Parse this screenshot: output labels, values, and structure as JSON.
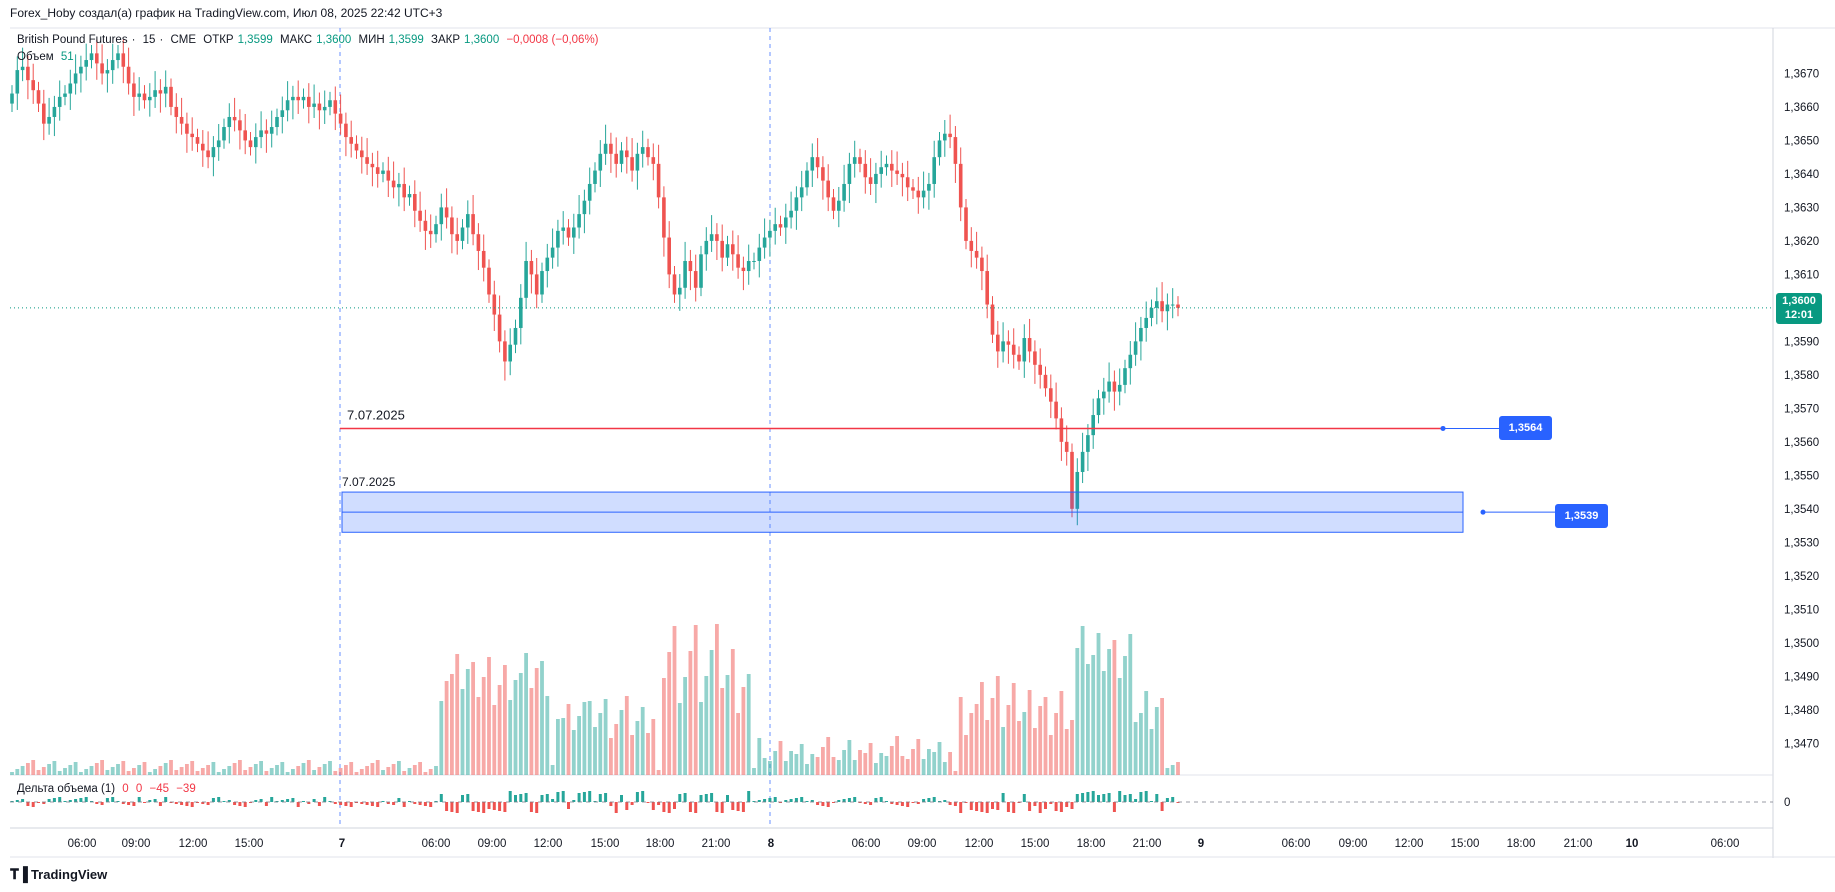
{
  "header": {
    "author": "Forex_Hoby",
    "text": "Forex_Hoby создал(а) график на TradingView.com, Июл 08, 2025 22:42 UTC+3"
  },
  "legend": {
    "symbol": "British Pound Futures",
    "interval": "15",
    "exchange": "CME",
    "open_label": "ОТКР",
    "open": "1,3599",
    "high_label": "МАКС",
    "high": "1,3600",
    "low_label": "МИН",
    "low": "1,3599",
    "close_label": "ЗАКР",
    "close": "1,3600",
    "change": "−0,0008 (−0,06%)",
    "volume_label": "Объем",
    "volume_value": "51"
  },
  "delta_legend": {
    "label": "Дельта объема (1)",
    "v1": "0",
    "v2": "0",
    "v3": "−45",
    "v4": "−39"
  },
  "price_axis": {
    "ticks": [
      "1,3670",
      "1,3660",
      "1,3650",
      "1,3640",
      "1,3630",
      "1,3620",
      "1,3610",
      "1,3590",
      "1,3580",
      "1,3570",
      "1,3560",
      "1,3550",
      "1,3540",
      "1,3530",
      "1,3520",
      "1,3510",
      "1,3500",
      "1,3490",
      "1,3480",
      "1,3470"
    ],
    "last_price": "1,3600",
    "countdown": "12:01",
    "delta_zero": "0"
  },
  "time_axis": {
    "ticks": [
      "06:00",
      "09:00",
      "12:00",
      "15:00",
      "7",
      "06:00",
      "09:00",
      "12:00",
      "15:00",
      "18:00",
      "21:00",
      "8",
      "06:00",
      "09:00",
      "12:00",
      "15:00",
      "18:00",
      "21:00",
      "9",
      "06:00",
      "09:00",
      "12:00",
      "15:00",
      "18:00",
      "21:00",
      "10",
      "06:00"
    ]
  },
  "drawings": {
    "level_line_label": "7.07.2025",
    "level_line_price": "1,3564",
    "zone_label": "7.07.2025",
    "zone_price": "1,3539"
  },
  "colors": {
    "up": "#26a69a",
    "down": "#ef5350",
    "level_line": "#f23645",
    "accent": "#2962ff",
    "last_price": "#089981"
  },
  "footer": {
    "brand": "TradingView"
  },
  "chart_data": {
    "type": "candlestick",
    "title": "British Pound Futures · 15 · CME",
    "timeframe": "15m",
    "ylim": [
      1.3465,
      1.3677
    ],
    "last_price": 1.36,
    "candles_close": [
      1.3664,
      1.3671,
      1.3672,
      1.3668,
      1.3665,
      1.3661,
      1.3655,
      1.3657,
      1.366,
      1.3663,
      1.3664,
      1.3667,
      1.367,
      1.3672,
      1.3674,
      1.3676,
      1.3673,
      1.367,
      1.3671,
      1.3674,
      1.3676,
      1.3672,
      1.3667,
      1.3663,
      1.3664,
      1.3662,
      1.3663,
      1.3665,
      1.3664,
      1.3666,
      1.366,
      1.3657,
      1.3655,
      1.3652,
      1.3651,
      1.3649,
      1.3647,
      1.3645,
      1.3648,
      1.365,
      1.3654,
      1.3657,
      1.3656,
      1.3653,
      1.365,
      1.3648,
      1.3651,
      1.3653,
      1.3652,
      1.3654,
      1.3657,
      1.3659,
      1.3662,
      1.3663,
      1.3662,
      1.3663,
      1.366,
      1.3661,
      1.3659,
      1.366,
      1.3662,
      1.3658,
      1.3655,
      1.3651,
      1.3649,
      1.3647,
      1.3645,
      1.3643,
      1.3642,
      1.364,
      1.3641,
      1.3638,
      1.3636,
      1.3637,
      1.3633,
      1.3634,
      1.3629,
      1.3626,
      1.3623,
      1.3622,
      1.3625,
      1.363,
      1.3627,
      1.3622,
      1.362,
      1.3624,
      1.3628,
      1.3622,
      1.3617,
      1.3612,
      1.3604,
      1.3598,
      1.359,
      1.3584,
      1.3589,
      1.3594,
      1.3603,
      1.3614,
      1.361,
      1.3604,
      1.3611,
      1.3615,
      1.3618,
      1.3623,
      1.3624,
      1.3621,
      1.3624,
      1.3628,
      1.3632,
      1.3637,
      1.3641,
      1.3646,
      1.3649,
      1.3646,
      1.3643,
      1.3647,
      1.3645,
      1.3641,
      1.3646,
      1.3648,
      1.3645,
      1.3643,
      1.3633,
      1.3621,
      1.361,
      1.3604,
      1.3606,
      1.3614,
      1.3611,
      1.3606,
      1.3616,
      1.362,
      1.3622,
      1.362,
      1.3615,
      1.3619,
      1.3616,
      1.3612,
      1.3611,
      1.3614,
      1.3614,
      1.3618,
      1.3621,
      1.3623,
      1.3625,
      1.3624,
      1.3627,
      1.3629,
      1.3633,
      1.3636,
      1.3641,
      1.3645,
      1.3642,
      1.3638,
      1.3633,
      1.3629,
      1.3632,
      1.3637,
      1.3643,
      1.3645,
      1.3643,
      1.3639,
      1.3637,
      1.364,
      1.3642,
      1.3643,
      1.3641,
      1.364,
      1.3639,
      1.3636,
      1.3635,
      1.3633,
      1.3635,
      1.3637,
      1.3645,
      1.365,
      1.3652,
      1.3651,
      1.3643,
      1.363,
      1.362,
      1.3617,
      1.3615,
      1.3611,
      1.3601,
      1.3592,
      1.3587,
      1.359,
      1.3589,
      1.3586,
      1.3584,
      1.3591,
      1.3587,
      1.3583,
      1.358,
      1.3576,
      1.3572,
      1.3567,
      1.356,
      1.3557,
      1.354,
      1.3551,
      1.3557,
      1.3562,
      1.3568,
      1.3573,
      1.3575,
      1.3578,
      1.3575,
      1.3577,
      1.3582,
      1.3586,
      1.359,
      1.3594,
      1.3597,
      1.36,
      1.3602,
      1.3599,
      1.3601,
      1.3601,
      1.36
    ],
    "volume_profile": "one bar per candle, heights relative; peaks near 12:00 and 18:00 of day 7 and near 17:00 of day 8",
    "annotations": [
      {
        "type": "horizontal_line",
        "label": "7.07.2025",
        "price": 1.3564
      },
      {
        "type": "zone",
        "label": "7.07.2025",
        "price_top": 1.3545,
        "price_bottom": 1.3533,
        "mid": 1.3539
      }
    ],
    "xlabel": "",
    "ylabel": ""
  }
}
